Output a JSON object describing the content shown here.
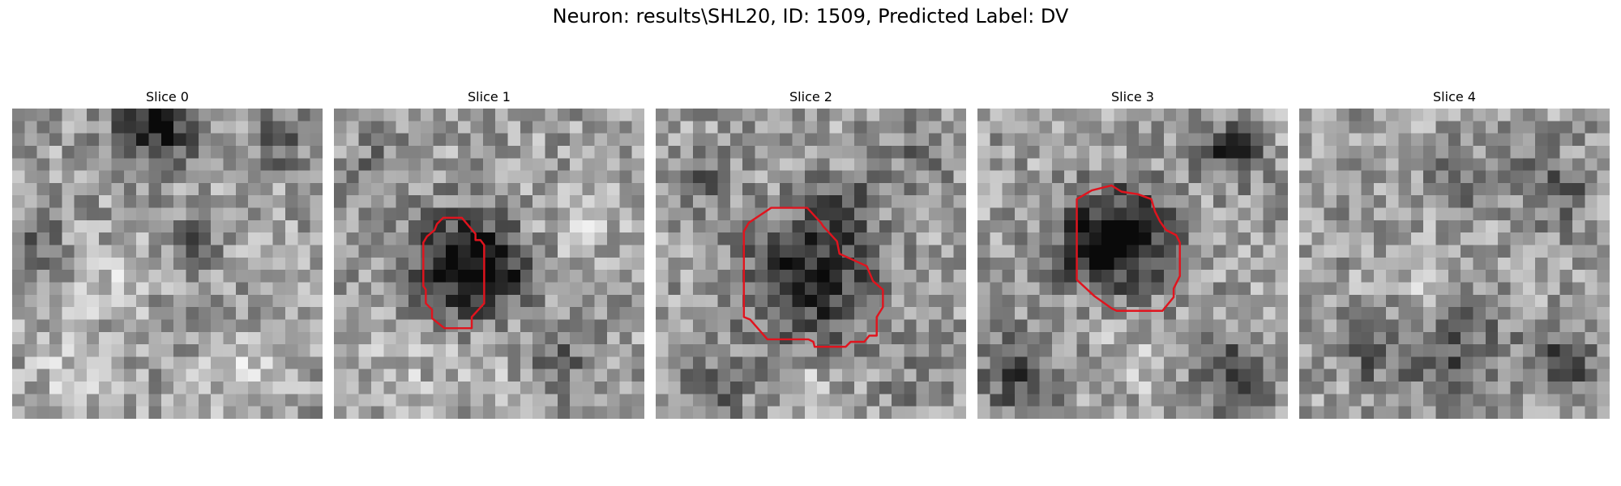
{
  "figure": {
    "title": "Neuron: results\\SHL20, ID: 1509, Predicted Label: DV"
  },
  "panels": [
    {
      "title": "Slice 0",
      "has_contour": false
    },
    {
      "title": "Slice 1",
      "has_contour": true
    },
    {
      "title": "Slice 2",
      "has_contour": true
    },
    {
      "title": "Slice 3",
      "has_contour": true
    },
    {
      "title": "Slice 4",
      "has_contour": false
    }
  ],
  "colors": {
    "contour": "#e0141e",
    "background": "#ffffff"
  },
  "image": {
    "colormap": "grayscale",
    "grid": "25x25 pixels"
  }
}
